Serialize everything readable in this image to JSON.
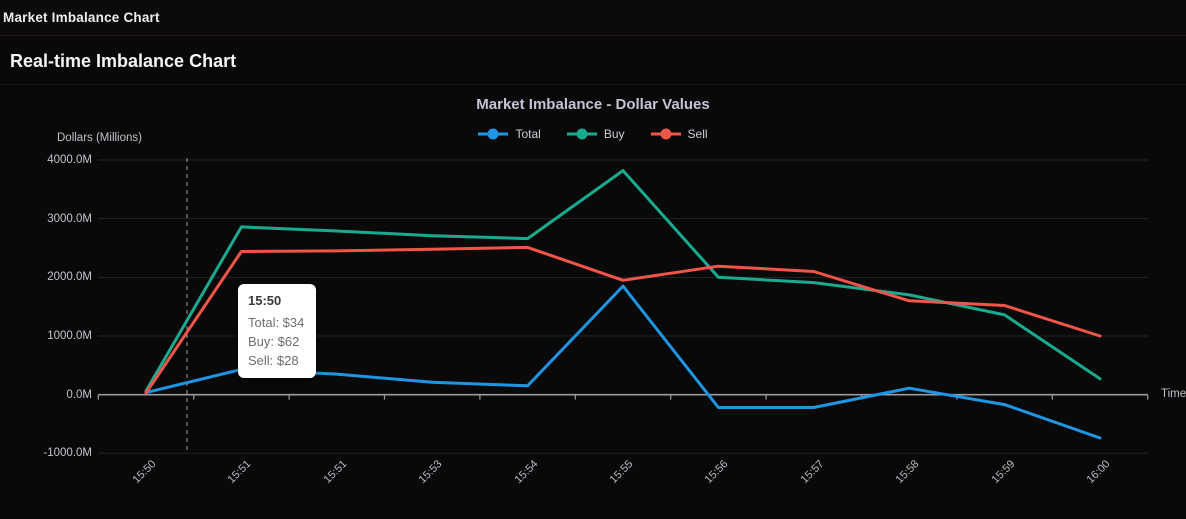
{
  "header": {
    "app_title": "Market Imbalance Chart"
  },
  "section": {
    "title": "Real-time Imbalance Chart"
  },
  "chart_data": {
    "type": "line",
    "title": "Market Imbalance - Dollar Values",
    "xlabel": "Time",
    "ylabel": "Dollars (Millions)",
    "categories": [
      "15:50",
      "15:51",
      "15:51",
      "15:53",
      "15:54",
      "15:55",
      "15:56",
      "15:57",
      "15:58",
      "15:59",
      "16:00"
    ],
    "series": [
      {
        "name": "Total",
        "color": "#1f96e4",
        "values": [
          34,
          430,
          350,
          210,
          150,
          1850,
          -220,
          -220,
          110,
          -170,
          -740
        ]
      },
      {
        "name": "Buy",
        "color": "#1aab8f",
        "values": [
          62,
          2860,
          2790,
          2710,
          2660,
          3820,
          2000,
          1910,
          1700,
          1360,
          270
        ]
      },
      {
        "name": "Sell",
        "color": "#f0554a",
        "values": [
          28,
          2440,
          2450,
          2480,
          2510,
          1950,
          2190,
          2100,
          1600,
          1520,
          1000
        ]
      }
    ],
    "ylim": [
      -1000,
      4000
    ],
    "y_tick_step": 1000,
    "y_tick_labels": [
      "4000.0M",
      "3000.0M",
      "2000.0M",
      "1000.0M",
      "0.0M",
      "-1000.0M"
    ],
    "grid": true,
    "legend_position": "top",
    "crosshair": {
      "label": "15:50"
    }
  },
  "tooltip": {
    "title": "15:50",
    "rows": [
      "Total: $34",
      "Buy: $62",
      "Sell: $28"
    ]
  }
}
